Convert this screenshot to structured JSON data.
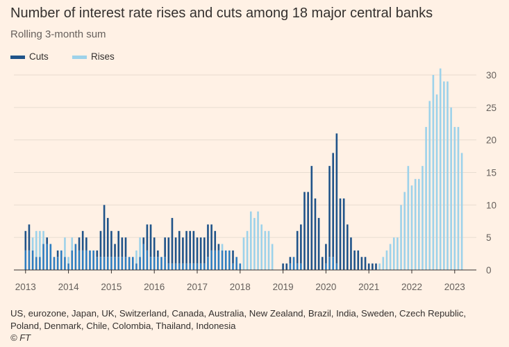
{
  "title": "Number of interest rate rises and cuts among 18 major central banks",
  "subtitle": "Rolling 3-month sum",
  "legend": {
    "cuts_label": "Cuts",
    "rises_label": "Rises"
  },
  "footnote": "US, eurozone, Japan, UK, Switzerland, Canada, Australia, New Zealand, Brazil, India, Sweden, Czech Republic, Poland, Denmark, Chile, Colombia, Thailand, Indonesia",
  "source": "© FT",
  "colors": {
    "cuts": "#1F5389",
    "rises": "#9DD2EA",
    "overlap": "#2E7DC0",
    "grid": "#E8DCD0",
    "background": "#FFF1E5"
  },
  "chart_data": {
    "type": "bar",
    "x_start": "2013-01",
    "x_frequency": "monthly",
    "xtick_labels": [
      "2013",
      "2014",
      "2015",
      "2016",
      "2017",
      "2018",
      "2019",
      "2020",
      "2021",
      "2022",
      "2023"
    ],
    "ytick_labels": [
      "0",
      "5",
      "10",
      "15",
      "20",
      "25",
      "30"
    ],
    "ylim": [
      0,
      32
    ],
    "y_axis_side": "right",
    "grid": true,
    "legend_position": "top-left",
    "series": [
      {
        "name": "Cuts",
        "values": [
          6,
          7,
          3,
          2,
          2,
          4,
          5,
          4,
          2,
          3,
          3,
          2,
          1,
          3,
          4,
          5,
          6,
          5,
          3,
          3,
          3,
          6,
          10,
          8,
          6,
          4,
          6,
          5,
          5,
          2,
          2,
          1,
          2,
          5,
          7,
          7,
          5,
          3,
          2,
          5,
          5,
          8,
          5,
          6,
          5,
          6,
          6,
          6,
          5,
          5,
          5,
          7,
          7,
          6,
          4,
          3,
          3,
          3,
          3,
          2,
          1,
          0,
          0,
          0,
          0,
          0,
          0,
          0,
          0,
          0,
          0,
          0,
          1,
          1,
          2,
          2,
          6,
          7,
          12,
          12,
          16,
          11,
          8,
          2,
          4,
          16,
          18,
          21,
          11,
          11,
          7,
          5,
          3,
          3,
          2,
          2,
          1,
          1,
          1,
          0,
          0,
          0,
          0,
          0,
          0,
          0,
          0,
          0,
          0,
          0,
          0,
          0,
          0,
          0,
          0,
          0,
          0,
          0,
          0,
          0,
          0,
          0,
          0,
          0
        ]
      },
      {
        "name": "Rises",
        "values": [
          3,
          3,
          5,
          6,
          6,
          6,
          4,
          4,
          2,
          2,
          3,
          5,
          2,
          5,
          4,
          3,
          3,
          3,
          3,
          3,
          2,
          2,
          2,
          2,
          2,
          2,
          2,
          2,
          2,
          2,
          2,
          3,
          5,
          4,
          3,
          2,
          2,
          2,
          2,
          2,
          1,
          1,
          1,
          1,
          1,
          1,
          1,
          1,
          1,
          1,
          1,
          2,
          3,
          3,
          3,
          4,
          3,
          3,
          1,
          2,
          1,
          5,
          6,
          9,
          8,
          9,
          7,
          6,
          6,
          4,
          0,
          0,
          0,
          0,
          1,
          2,
          1,
          1,
          0,
          0,
          0,
          0,
          0,
          0,
          1,
          2,
          2,
          1,
          0,
          0,
          0,
          0,
          0,
          0,
          0,
          0,
          0,
          0,
          0,
          1,
          2,
          3,
          4,
          5,
          5,
          10,
          12,
          16,
          13,
          14,
          14,
          16,
          22,
          26,
          30,
          27,
          31,
          29,
          29,
          25,
          22,
          22,
          18
        ]
      }
    ]
  }
}
